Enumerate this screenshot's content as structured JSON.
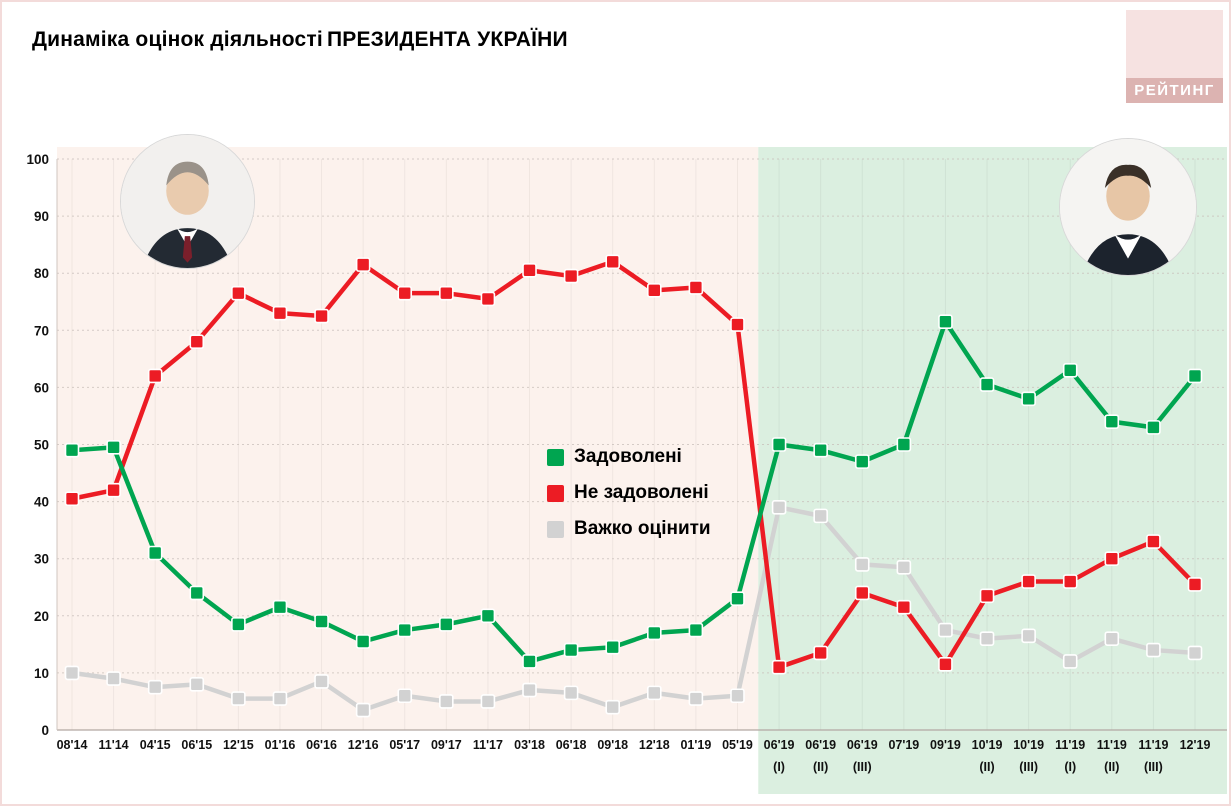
{
  "page": {
    "title_prefix": "Динаміка оцінок діяльності",
    "title_emphasis": "ПРЕЗИДЕНТА УКРАЇНИ",
    "logo_text": "РЕЙТИНГ",
    "logo_bg": "#F6E2E1",
    "logo_band_bg": "#DCB3B1"
  },
  "chart_data": {
    "type": "line",
    "title": "Динаміка оцінок діяльності ПРЕЗИДЕНТА УКРАЇНИ",
    "xlabel": "",
    "ylabel": "",
    "ylim": [
      0,
      100
    ],
    "yticks": [
      0,
      10,
      20,
      30,
      40,
      50,
      60,
      70,
      80,
      90,
      100
    ],
    "grid": true,
    "legend_position": "center",
    "categories": [
      "08'14",
      "11'14",
      "04'15",
      "06'15",
      "12'15",
      "01'16",
      "06'16",
      "12'16",
      "05'17",
      "09'17",
      "11'17",
      "03'18",
      "06'18",
      "09'18",
      "12'18",
      "01'19",
      "05'19",
      "06'19",
      "06'19",
      "06'19",
      "07'19",
      "09'19",
      "10'19",
      "10'19",
      "11'19",
      "11'19",
      "11'19",
      "12'19"
    ],
    "sub_labels": [
      "",
      "",
      "",
      "",
      "",
      "",
      "",
      "",
      "",
      "",
      "",
      "",
      "",
      "",
      "",
      "",
      "",
      "(I)",
      "(II)",
      "(III)",
      "",
      "",
      "(II)",
      "(III)",
      "(I)",
      "(II)",
      "(III)",
      ""
    ],
    "regions": [
      {
        "name": "poroshenko-era",
        "from_index": 0,
        "to_index": 16,
        "color": "#FCF2ED",
        "extend_below": false
      },
      {
        "name": "zelensky-era",
        "from_index": 17,
        "to_index": 27,
        "color": "#DBEFE0",
        "extend_below": true
      }
    ],
    "series": [
      {
        "key": "satisfied",
        "name": "Задоволені",
        "color": "#00A550",
        "values": [
          49,
          49.5,
          31,
          24,
          18.5,
          21.5,
          19,
          15.5,
          17.5,
          18.5,
          20,
          12,
          14,
          14.5,
          17,
          17.5,
          23,
          50,
          49,
          47,
          50,
          71.5,
          60.5,
          58,
          63,
          54,
          53,
          62
        ]
      },
      {
        "key": "dissatisfied",
        "name": "Не задоволені",
        "color": "#EC1C24",
        "values": [
          40.5,
          42,
          62,
          68,
          76.5,
          73,
          72.5,
          81.5,
          76.5,
          76.5,
          75.5,
          80.5,
          79.5,
          82,
          77,
          77.5,
          71,
          11,
          13.5,
          24,
          21.5,
          11.5,
          23.5,
          26,
          26,
          30,
          33,
          25.5
        ]
      },
      {
        "key": "hard_to_say",
        "name": "Важко оцінити",
        "color": "#D2D2D2",
        "values": [
          10,
          9,
          7.5,
          8,
          5.5,
          5.5,
          8.5,
          3.5,
          6,
          5,
          5,
          7,
          6.5,
          4,
          6.5,
          5.5,
          6,
          39,
          37.5,
          29,
          28.5,
          17.5,
          16,
          16.5,
          12,
          16,
          14,
          13.5
        ]
      }
    ]
  }
}
